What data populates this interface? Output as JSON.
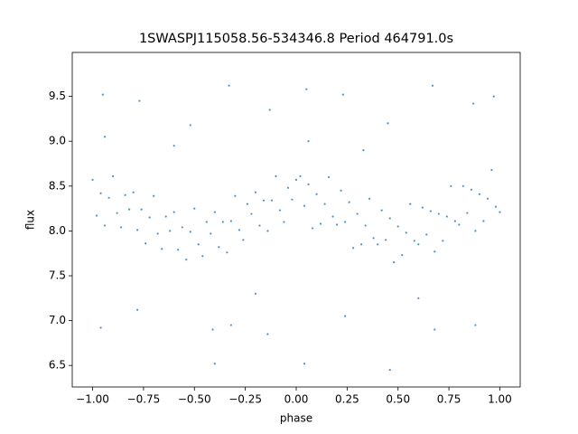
{
  "chart_data": {
    "type": "scatter",
    "title": "1SWASPJ115058.56-534346.8 Period 464791.0s",
    "xlabel": "phase",
    "ylabel": "flux",
    "color": "#1f77b4",
    "xlim": [
      -1.1,
      1.1
    ],
    "ylim": [
      6.26,
      9.99
    ],
    "xticks": [
      {
        "value": -1,
        "label": "−1.00"
      },
      {
        "value": -0.75,
        "label": "−0.75"
      },
      {
        "value": -0.5,
        "label": "−0.50"
      },
      {
        "value": -0.25,
        "label": "−0.25"
      },
      {
        "value": 0,
        "label": "0.00"
      },
      {
        "value": 0.25,
        "label": "0.25"
      },
      {
        "value": 0.5,
        "label": "0.50"
      },
      {
        "value": 0.75,
        "label": "0.75"
      },
      {
        "value": 1,
        "label": "1.00"
      }
    ],
    "yticks": [
      6.5,
      {
        "value": 7,
        "label": "7.0"
      },
      7.5,
      {
        "value": 8,
        "label": "8.0"
      },
      8.5,
      {
        "value": 9,
        "label": "9.0"
      },
      9.5
    ],
    "x": [
      -1.0,
      -0.98,
      -0.96,
      -0.94,
      -0.92,
      -0.9,
      -0.88,
      -0.86,
      -0.84,
      -0.82,
      -0.8,
      -0.78,
      -0.76,
      -0.74,
      -0.72,
      -0.7,
      -0.68,
      -0.66,
      -0.64,
      -0.62,
      -0.6,
      -0.58,
      -0.56,
      -0.54,
      -0.52,
      -0.5,
      -0.48,
      -0.46,
      -0.44,
      -0.42,
      -0.4,
      -0.38,
      -0.36,
      -0.34,
      -0.32,
      -0.3,
      -0.28,
      -0.26,
      -0.24,
      -0.22,
      -0.2,
      -0.18,
      -0.16,
      -0.14,
      -0.12,
      -0.1,
      -0.08,
      -0.06,
      -0.04,
      -0.02,
      0.0,
      0.02,
      0.04,
      0.06,
      0.08,
      0.1,
      0.12,
      0.14,
      0.16,
      0.18,
      0.2,
      0.22,
      0.24,
      0.26,
      0.28,
      0.3,
      0.32,
      0.34,
      0.36,
      0.38,
      0.4,
      0.42,
      0.44,
      0.46,
      0.48,
      0.5,
      0.52,
      0.54,
      0.56,
      0.58,
      0.6,
      0.62,
      0.64,
      0.66,
      0.68,
      0.7,
      0.72,
      0.74,
      0.76,
      0.78,
      0.8,
      0.82,
      0.84,
      0.86,
      0.88,
      0.9,
      0.92,
      0.94,
      0.96,
      0.98,
      1.0,
      -0.95,
      -0.96,
      -0.94,
      -0.77,
      -0.78,
      -0.52,
      -0.4,
      -0.41,
      -0.33,
      -0.32,
      -0.13,
      -0.14,
      0.05,
      0.04,
      0.06,
      0.23,
      0.24,
      0.45,
      0.46,
      0.67,
      0.68,
      0.87,
      0.88,
      0.97,
      -0.2,
      0.6,
      -0.6,
      0.33
    ],
    "y": [
      8.57,
      8.17,
      8.42,
      8.06,
      8.37,
      8.61,
      8.2,
      8.04,
      8.4,
      8.24,
      8.43,
      8.01,
      8.24,
      7.86,
      8.15,
      8.39,
      7.97,
      7.8,
      8.16,
      8.0,
      8.21,
      7.79,
      8.04,
      7.68,
      7.99,
      8.25,
      7.85,
      7.72,
      8.1,
      7.97,
      8.21,
      7.82,
      8.1,
      7.76,
      8.11,
      8.39,
      8.01,
      7.9,
      8.3,
      8.19,
      8.43,
      8.06,
      8.34,
      8.0,
      8.34,
      8.61,
      8.23,
      8.1,
      8.48,
      8.35,
      8.57,
      8.61,
      8.28,
      8.52,
      8.03,
      8.41,
      8.08,
      8.3,
      8.6,
      8.16,
      8.07,
      8.45,
      8.1,
      8.32,
      7.81,
      8.19,
      7.85,
      8.06,
      8.36,
      7.92,
      7.85,
      8.23,
      7.9,
      8.14,
      7.65,
      8.05,
      7.73,
      7.98,
      8.3,
      7.89,
      7.85,
      8.26,
      7.96,
      8.22,
      7.77,
      8.19,
      7.89,
      8.16,
      8.5,
      8.11,
      8.07,
      8.5,
      8.2,
      8.46,
      8.0,
      8.41,
      8.11,
      8.36,
      8.68,
      8.27,
      8.21,
      9.52,
      6.92,
      9.05,
      9.45,
      7.12,
      9.18,
      6.52,
      6.9,
      9.62,
      6.95,
      9.35,
      6.85,
      9.58,
      6.52,
      9.0,
      9.52,
      7.05,
      9.2,
      6.45,
      9.62,
      6.9,
      9.42,
      6.95,
      9.5,
      7.3,
      7.25,
      8.95,
      8.9
    ]
  }
}
